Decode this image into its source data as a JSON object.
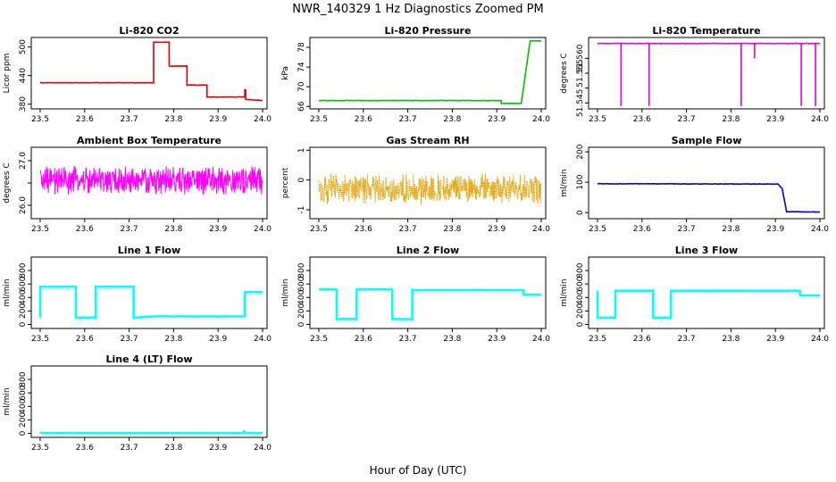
{
  "title": "NWR_140329  1 Hz Diagnostics Zoomed PM",
  "xlabel": "Hour of Day (UTC)",
  "chart_data": [
    {
      "type": "line",
      "title": "Li-820 CO2",
      "ylabel": "Licor ppm",
      "xlim": [
        23.48,
        24.01
      ],
      "ylim": [
        370,
        520
      ],
      "yticks": [
        380,
        440,
        500
      ],
      "xticks": [
        23.5,
        23.6,
        23.7,
        23.8,
        23.9,
        24.0
      ],
      "color": "#e00000",
      "series": [
        {
          "x": [
            23.5,
            23.755,
            23.755,
            23.79,
            23.79,
            23.83,
            23.83,
            23.875,
            23.875,
            23.96,
            23.96,
            23.962,
            23.962,
            24.0
          ],
          "values": [
            425,
            425,
            510,
            510,
            460,
            460,
            420,
            420,
            395,
            395,
            410,
            410,
            390,
            388
          ]
        }
      ]
    },
    {
      "type": "line",
      "title": "Li-820 Pressure",
      "ylabel": "kPa",
      "xlim": [
        23.48,
        24.01
      ],
      "ylim": [
        65.5,
        80
      ],
      "yticks": [
        66,
        70,
        74,
        78
      ],
      "xticks": [
        23.5,
        23.6,
        23.7,
        23.8,
        23.9,
        24.0
      ],
      "color": "#00c000",
      "series": [
        {
          "x": [
            23.5,
            23.91,
            23.91,
            23.955,
            23.965,
            23.975,
            24.0
          ],
          "values": [
            67.2,
            67.2,
            66.6,
            66.6,
            73,
            79.3,
            79.3
          ]
        }
      ]
    },
    {
      "type": "line",
      "title": "Li-820 Temperature",
      "ylabel": "degrees C",
      "xlim": [
        23.48,
        24.01
      ],
      "ylim": [
        51.543,
        51.567
      ],
      "yticks": [
        51.545,
        51.55,
        51.555,
        51.56
      ],
      "ytick_labels": [
        "51.545",
        "",
        "51.555",
        "51.560"
      ],
      "xticks": [
        23.5,
        23.6,
        23.7,
        23.8,
        23.9,
        24.0
      ],
      "color": "#e000e0",
      "series": [
        {
          "x": [
            23.5,
            23.553,
            23.553,
            23.553,
            23.616,
            23.616,
            23.616,
            23.823,
            23.823,
            23.823,
            23.853,
            23.853,
            23.853,
            23.958,
            23.958,
            23.958,
            23.99,
            23.99,
            23.99,
            24.0
          ],
          "values": [
            51.565,
            51.565,
            51.544,
            51.565,
            51.565,
            51.544,
            51.565,
            51.565,
            51.544,
            51.565,
            51.565,
            51.56,
            51.565,
            51.565,
            51.544,
            51.565,
            51.565,
            51.544,
            51.565,
            51.565
          ]
        }
      ]
    },
    {
      "type": "line",
      "title": "Ambient Box Temperature",
      "ylabel": "degrees C",
      "xlim": [
        23.48,
        24.01
      ],
      "ylim": [
        25.7,
        27.3
      ],
      "yticks": [
        26.0,
        26.5,
        27.0
      ],
      "ytick_labels": [
        "26.0",
        "",
        "27.0"
      ],
      "xticks": [
        23.5,
        23.6,
        23.7,
        23.8,
        23.9,
        24.0
      ],
      "color": "#ff00ff",
      "noise": {
        "center": 26.55,
        "amplitude": 0.35
      },
      "series": [
        {
          "x": [
            23.5,
            24.0
          ],
          "values": [
            26.55,
            26.55
          ]
        }
      ]
    },
    {
      "type": "line",
      "title": "Gas Stream RH",
      "ylabel": "percent",
      "xlim": [
        23.48,
        24.01
      ],
      "ylim": [
        -1.3,
        1.1
      ],
      "yticks": [
        -1.0,
        0.0,
        1.0
      ],
      "xticks": [
        23.5,
        23.6,
        23.7,
        23.8,
        23.9,
        24.0
      ],
      "color": "#e8a000",
      "noise": {
        "center": -0.3,
        "amplitude": 0.55
      },
      "series": [
        {
          "x": [
            23.5,
            24.0
          ],
          "values": [
            -0.3,
            -0.3
          ]
        }
      ]
    },
    {
      "type": "line",
      "title": "Sample Flow",
      "ylabel": "ml/min",
      "xlim": [
        23.48,
        24.01
      ],
      "ylim": [
        -20,
        215
      ],
      "yticks": [
        0,
        100,
        200
      ],
      "xticks": [
        23.5,
        23.6,
        23.7,
        23.8,
        23.9,
        24.0
      ],
      "color": "#0000d0",
      "series": [
        {
          "x": [
            23.5,
            23.905,
            23.915,
            23.925,
            24.0
          ],
          "values": [
            95,
            94,
            80,
            3,
            2
          ]
        }
      ]
    },
    {
      "type": "line",
      "title": "Line 1 Flow",
      "ylabel": "ml/min",
      "xlim": [
        23.48,
        24.01
      ],
      "ylim": [
        -60,
        1000
      ],
      "yticks": [
        0,
        200,
        400,
        600,
        800
      ],
      "xticks": [
        23.5,
        23.6,
        23.7,
        23.8,
        23.9,
        24.0
      ],
      "color": "#00ffff",
      "series": [
        {
          "x": [
            23.5,
            23.5,
            23.58,
            23.58,
            23.625,
            23.625,
            23.71,
            23.71,
            23.755,
            23.96,
            23.96,
            24.0
          ],
          "values": [
            100,
            560,
            560,
            100,
            100,
            560,
            560,
            100,
            120,
            120,
            480,
            480
          ]
        }
      ]
    },
    {
      "type": "line",
      "title": "Line 2 Flow",
      "ylabel": "ml/min",
      "xlim": [
        23.48,
        24.01
      ],
      "ylim": [
        -60,
        1000
      ],
      "yticks": [
        0,
        200,
        400,
        600,
        800
      ],
      "xticks": [
        23.5,
        23.6,
        23.7,
        23.8,
        23.9,
        24.0
      ],
      "color": "#00ffff",
      "series": [
        {
          "x": [
            23.5,
            23.54,
            23.54,
            23.585,
            23.585,
            23.665,
            23.665,
            23.71,
            23.71,
            23.96,
            23.96,
            24.0
          ],
          "values": [
            520,
            520,
            80,
            80,
            520,
            520,
            80,
            80,
            510,
            510,
            440,
            440
          ]
        }
      ]
    },
    {
      "type": "line",
      "title": "Line 3 Flow",
      "ylabel": "ml/min",
      "xlim": [
        23.48,
        24.01
      ],
      "ylim": [
        -60,
        1000
      ],
      "yticks": [
        0,
        200,
        400,
        600,
        800
      ],
      "xticks": [
        23.5,
        23.6,
        23.7,
        23.8,
        23.9,
        24.0
      ],
      "color": "#00ffff",
      "series": [
        {
          "x": [
            23.5,
            23.5,
            23.54,
            23.54,
            23.625,
            23.625,
            23.665,
            23.665,
            23.955,
            23.955,
            24.0
          ],
          "values": [
            500,
            100,
            100,
            500,
            500,
            100,
            100,
            500,
            500,
            430,
            430
          ]
        }
      ]
    },
    {
      "type": "line",
      "title": "Line 4 (LT) Flow",
      "ylabel": "ml/min",
      "xlim": [
        23.48,
        24.01
      ],
      "ylim": [
        -60,
        1000
      ],
      "yticks": [
        0,
        200,
        400,
        600,
        800
      ],
      "xticks": [
        23.5,
        23.6,
        23.7,
        23.8,
        23.9,
        24.0
      ],
      "color": "#00ffff",
      "series": [
        {
          "x": [
            23.5,
            23.955,
            23.958,
            23.962,
            24.0
          ],
          "values": [
            4,
            4,
            30,
            4,
            4
          ]
        }
      ]
    }
  ]
}
